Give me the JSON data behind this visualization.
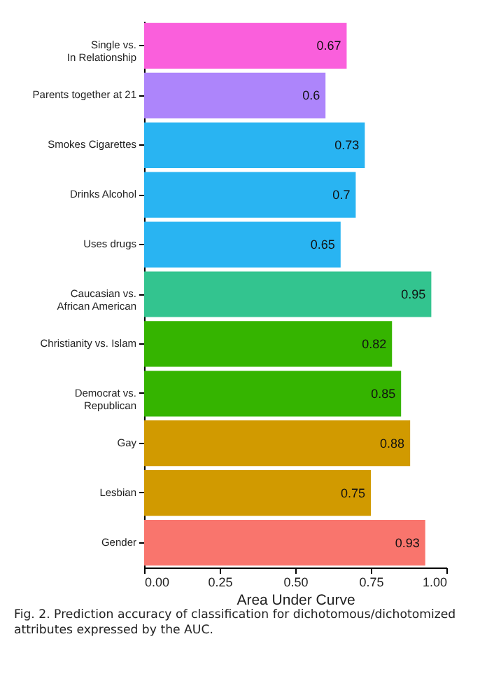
{
  "chart_data": {
    "type": "bar",
    "orientation": "horizontal",
    "categories": [
      "Single vs.\nIn Relationship",
      "Parents together at 21",
      "Smokes Cigarettes",
      "Drinks Alcohol",
      "Uses drugs",
      "Caucasian vs.\nAfrican American",
      "Christianity vs. Islam",
      "Democrat vs.\nRepublican",
      "Gay",
      "Lesbian",
      "Gender"
    ],
    "values": [
      0.67,
      0.6,
      0.73,
      0.7,
      0.65,
      0.95,
      0.82,
      0.85,
      0.88,
      0.75,
      0.93
    ],
    "colors": [
      "#fa5fdc",
      "#ad85fb",
      "#29b4f2",
      "#29b4f2",
      "#29b4f2",
      "#33c48f",
      "#35b400",
      "#35b400",
      "#d19a00",
      "#d19a00",
      "#f9756d"
    ],
    "xlabel": "Area Under Curve",
    "xlim": [
      0,
      1
    ],
    "xticks": [
      {
        "value": 0,
        "label": "0.00"
      },
      {
        "value": 0.25,
        "label": "0.25"
      },
      {
        "value": 0.5,
        "label": "0.50"
      },
      {
        "value": 0.75,
        "label": "0.75"
      },
      {
        "value": 1,
        "label": "1.00"
      }
    ],
    "data_labels": true,
    "grid": false,
    "annotations": [
      "Fig. 2.  Prediction accuracy of classification for dichotomous/dichotomized attributes expressed by the AUC."
    ]
  }
}
